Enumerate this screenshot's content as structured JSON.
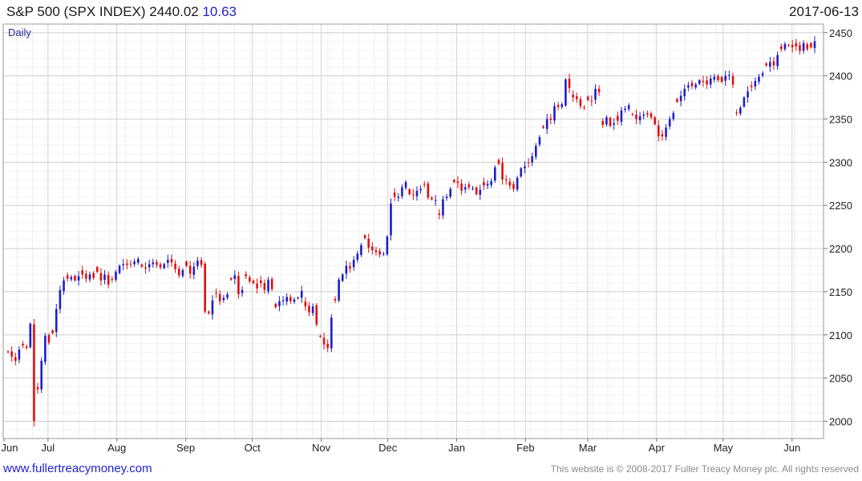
{
  "header": {
    "title": "S&P 500 (SPX INDEX)",
    "last": "2440.02",
    "change": "10.63",
    "date": "2017-06-13"
  },
  "footer": {
    "site": "www.fullertreacymoney.com",
    "copyright": "This website is © 2008-2017 Fuller Treacy Money plc. All rights reserved"
  },
  "chart_data": {
    "type": "candlestick",
    "period_label": "Daily",
    "y_ticks": [
      2000,
      2050,
      2100,
      2150,
      2200,
      2250,
      2300,
      2350,
      2400,
      2450
    ],
    "ylim": [
      1980,
      2460
    ],
    "x_start": "2016-06-13",
    "x_end": "2017-06-13",
    "month_labels": [
      {
        "label": "Jun",
        "date": "2016-06-01"
      },
      {
        "label": "Jul",
        "date": "2016-07-01"
      },
      {
        "label": "Aug",
        "date": "2016-08-01"
      },
      {
        "label": "Sep",
        "date": "2016-09-01"
      },
      {
        "label": "Oct",
        "date": "2016-10-01"
      },
      {
        "label": "Nov",
        "date": "2016-11-01"
      },
      {
        "label": "Dec",
        "date": "2016-12-01"
      },
      {
        "label": "Jan",
        "date": "2017-01-01"
      },
      {
        "label": "Feb",
        "date": "2017-02-01"
      },
      {
        "label": "Mar",
        "date": "2017-03-01"
      },
      {
        "label": "Apr",
        "date": "2017-04-01"
      },
      {
        "label": "May",
        "date": "2017-05-01"
      },
      {
        "label": "Jun",
        "date": "2017-06-01"
      }
    ],
    "grid": true,
    "up_color": "#1f1fc8",
    "down_color": "#e01010",
    "closes": [
      2080,
      2075,
      2070,
      2083,
      2088,
      2085,
      2113,
      2000,
      2037,
      2070,
      2099,
      2091,
      2102,
      2130,
      2152,
      2163,
      2165,
      2167,
      2163,
      2168,
      2170,
      2165,
      2170,
      2166,
      2173,
      2163,
      2170,
      2158,
      2164,
      2173,
      2180,
      2182,
      2181,
      2182,
      2185,
      2188,
      2179,
      2177,
      2182,
      2184,
      2181,
      2178,
      2182,
      2187,
      2184,
      2176,
      2169,
      2175,
      2180,
      2171,
      2179,
      2186,
      2181,
      2127,
      2125,
      2140,
      2148,
      2139,
      2143,
      2147,
      2164,
      2169,
      2147,
      2152,
      2168,
      2162,
      2160,
      2154,
      2160,
      2152,
      2164,
      2153,
      2132,
      2139,
      2140,
      2144,
      2139,
      2141,
      2143,
      2151,
      2133,
      2126,
      2133,
      2112,
      2098,
      2089,
      2085,
      2120,
      2140,
      2164,
      2170,
      2180,
      2177,
      2187,
      2194,
      2204,
      2212,
      2201,
      2198,
      2196,
      2193,
      2194,
      2214,
      2252,
      2260,
      2260,
      2271,
      2277,
      2263,
      2262,
      2267,
      2269,
      2274,
      2259,
      2257,
      2256,
      2239,
      2257,
      2260,
      2269,
      2277,
      2276,
      2267,
      2271,
      2271,
      2270,
      2263,
      2268,
      2273,
      2275,
      2278,
      2294,
      2298,
      2280,
      2279,
      2273,
      2269,
      2282,
      2293,
      2295,
      2299,
      2307,
      2319,
      2329,
      2340,
      2350,
      2349,
      2365,
      2364,
      2367,
      2396,
      2386,
      2375,
      2373,
      2365,
      2363,
      2372,
      2371,
      2385,
      2381,
      2343,
      2352,
      2342,
      2345,
      2348,
      2360,
      2362,
      2366,
      2355,
      2350,
      2353,
      2355,
      2355,
      2352,
      2344,
      2330,
      2330,
      2340,
      2350,
      2357,
      2370,
      2377,
      2385,
      2389,
      2388,
      2390,
      2395,
      2393,
      2390,
      2397,
      2399,
      2395,
      2393,
      2400,
      2401,
      2390,
      2357,
      2363,
      2375,
      2382,
      2387,
      2394,
      2399,
      2403,
      2412,
      2416,
      2412,
      2424,
      2431,
      2437,
      2435,
      2433,
      2434,
      2429,
      2438,
      2431,
      2433,
      2440
    ]
  }
}
